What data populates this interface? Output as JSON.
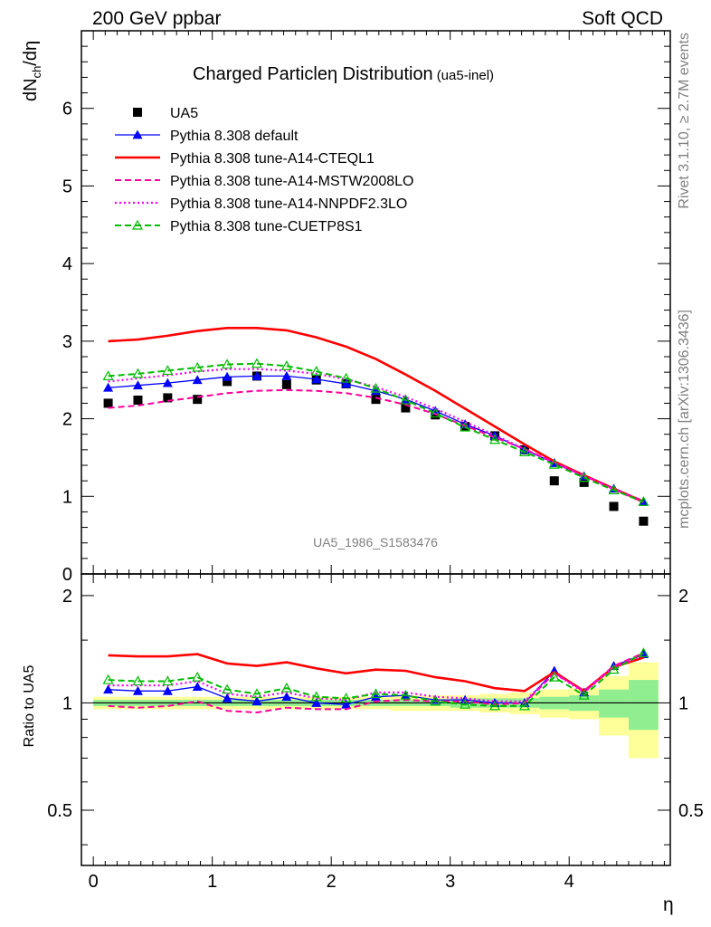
{
  "header": {
    "left": "200 GeV ppbar",
    "right": "Soft QCD"
  },
  "side_text": {
    "rivet": "Rivet 3.1.10, ≥ 2.7M events",
    "mcplots": "mcplots.cern.ch [arXiv:1306.3436]"
  },
  "chart_data": [
    {
      "type": "line",
      "title": "Charged Particleη Distribution",
      "subtitle": "(ua5-inel)",
      "analysis_label": "UA5_1986_S1583476",
      "ylabel_main": "dN",
      "ylabel_sub": "ch",
      "ylabel_tail": "/dη",
      "xlabel": "",
      "xlim": [
        -0.1,
        4.85
      ],
      "ylim": [
        0,
        7
      ],
      "yticks": [
        0,
        1,
        2,
        3,
        4,
        5,
        6
      ],
      "ytick_labels": [
        "0",
        "1",
        "2",
        "3",
        "4",
        "5",
        "6"
      ],
      "x": [
        0.125,
        0.375,
        0.625,
        0.875,
        1.125,
        1.375,
        1.625,
        1.875,
        2.125,
        2.375,
        2.625,
        2.875,
        3.125,
        3.375,
        3.625,
        3.875,
        4.125,
        4.375,
        4.625
      ],
      "series": [
        {
          "name": "UA5",
          "color": "#000000",
          "marker": "square",
          "line": "none",
          "values": [
            2.2,
            2.24,
            2.27,
            2.25,
            2.48,
            2.55,
            2.44,
            2.5,
            2.45,
            2.25,
            2.14,
            2.05,
            1.9,
            1.78,
            1.6,
            1.2,
            1.18,
            0.87,
            0.68
          ]
        },
        {
          "name": "Pythia 8.308 default",
          "color": "#0000ff",
          "marker": "triangle-filled",
          "line": "solid",
          "values": [
            2.4,
            2.43,
            2.46,
            2.5,
            2.54,
            2.55,
            2.55,
            2.51,
            2.45,
            2.36,
            2.25,
            2.1,
            1.93,
            1.78,
            1.6,
            1.43,
            1.26,
            1.1,
            0.93
          ]
        },
        {
          "name": "Pythia 8.308 tune-A14-CTEQL1",
          "color": "#ff0000",
          "marker": "none",
          "line": "solid-thick",
          "values": [
            3.0,
            3.02,
            3.07,
            3.13,
            3.17,
            3.17,
            3.14,
            3.05,
            2.93,
            2.77,
            2.57,
            2.36,
            2.13,
            1.9,
            1.67,
            1.45,
            1.27,
            1.1,
            0.93
          ]
        },
        {
          "name": "Pythia 8.308 tune-A14-MSTW2008LO",
          "color": "#ff0099",
          "marker": "none",
          "line": "dashed",
          "values": [
            2.14,
            2.17,
            2.23,
            2.28,
            2.33,
            2.36,
            2.37,
            2.36,
            2.33,
            2.27,
            2.18,
            2.06,
            1.91,
            1.76,
            1.61,
            1.44,
            1.27,
            1.1,
            0.94
          ]
        },
        {
          "name": "Pythia 8.308 tune-A14-NNPDF2.3LO",
          "color": "#ff00ff",
          "marker": "none",
          "line": "dotted",
          "values": [
            2.48,
            2.52,
            2.56,
            2.61,
            2.64,
            2.64,
            2.62,
            2.58,
            2.51,
            2.41,
            2.28,
            2.13,
            1.96,
            1.79,
            1.61,
            1.43,
            1.26,
            1.09,
            0.92
          ]
        },
        {
          "name": "Pythia 8.308 tune-CUETP8S1",
          "color": "#00bb00",
          "marker": "triangle-open",
          "line": "dashed",
          "values": [
            2.55,
            2.58,
            2.62,
            2.66,
            2.7,
            2.71,
            2.68,
            2.61,
            2.52,
            2.39,
            2.24,
            2.07,
            1.89,
            1.73,
            1.57,
            1.41,
            1.24,
            1.08,
            0.93
          ]
        }
      ],
      "legend_placement": "top-left",
      "grid": false
    },
    {
      "type": "line",
      "title": "",
      "ylabel": "Ratio to UA5",
      "xlabel": "η",
      "xlim": [
        -0.1,
        4.85
      ],
      "ylim": [
        0.35,
        2.3
      ],
      "yticks": [
        0.5,
        1,
        2
      ],
      "ytick_labels": [
        "0.5",
        "1",
        "2"
      ],
      "xticks": [
        0,
        1,
        2,
        3,
        4
      ],
      "xtick_labels": [
        "0",
        "1",
        "2",
        "3",
        "4"
      ],
      "band_outer_halfwidth": [
        0.04,
        0.04,
        0.04,
        0.04,
        0.04,
        0.04,
        0.04,
        0.04,
        0.04,
        0.04,
        0.05,
        0.05,
        0.05,
        0.06,
        0.07,
        0.09,
        0.1,
        0.19,
        0.3
      ],
      "band_inner_halfwidth": [
        0.02,
        0.02,
        0.02,
        0.02,
        0.02,
        0.02,
        0.02,
        0.02,
        0.02,
        0.02,
        0.02,
        0.02,
        0.03,
        0.03,
        0.03,
        0.04,
        0.05,
        0.09,
        0.16
      ],
      "band_outer_color": "#ffff99",
      "band_inner_color": "#90ee90",
      "series": [
        {
          "name": "Pythia 8.308 default",
          "color": "#0000ff",
          "marker": "triangle-filled",
          "line": "solid",
          "values": [
            1.09,
            1.08,
            1.08,
            1.11,
            1.03,
            1.01,
            1.04,
            1.0,
            0.99,
            1.04,
            1.05,
            1.02,
            1.02,
            1.0,
            1.0,
            1.23,
            1.07,
            1.27,
            1.37
          ]
        },
        {
          "name": "Pythia 8.308 tune-A14-CTEQL1",
          "color": "#ff0000",
          "marker": "none",
          "line": "solid-thick",
          "values": [
            1.36,
            1.35,
            1.35,
            1.37,
            1.29,
            1.27,
            1.3,
            1.25,
            1.21,
            1.24,
            1.23,
            1.18,
            1.15,
            1.1,
            1.08,
            1.22,
            1.08,
            1.26,
            1.34
          ]
        },
        {
          "name": "Pythia 8.308 tune-A14-MSTW2008LO",
          "color": "#ff0099",
          "marker": "none",
          "line": "dashed",
          "values": [
            0.98,
            0.97,
            0.98,
            1.01,
            0.95,
            0.94,
            0.97,
            0.96,
            0.96,
            1.01,
            1.02,
            1.01,
            1.01,
            0.99,
            1.0,
            1.21,
            1.08,
            1.27,
            1.38
          ]
        },
        {
          "name": "Pythia 8.308 tune-A14-NNPDF2.3LO",
          "color": "#ff00ff",
          "marker": "none",
          "line": "dotted",
          "values": [
            1.12,
            1.12,
            1.12,
            1.15,
            1.06,
            1.04,
            1.07,
            1.03,
            1.02,
            1.07,
            1.07,
            1.04,
            1.03,
            1.01,
            1.01,
            1.21,
            1.07,
            1.26,
            1.36
          ]
        },
        {
          "name": "Pythia 8.308 tune-CUETP8S1",
          "color": "#00bb00",
          "marker": "triangle-open",
          "line": "dashed",
          "values": [
            1.16,
            1.15,
            1.15,
            1.18,
            1.09,
            1.06,
            1.1,
            1.04,
            1.03,
            1.06,
            1.05,
            1.01,
            0.99,
            0.98,
            0.98,
            1.18,
            1.05,
            1.24,
            1.38
          ]
        }
      ],
      "grid": false
    }
  ]
}
